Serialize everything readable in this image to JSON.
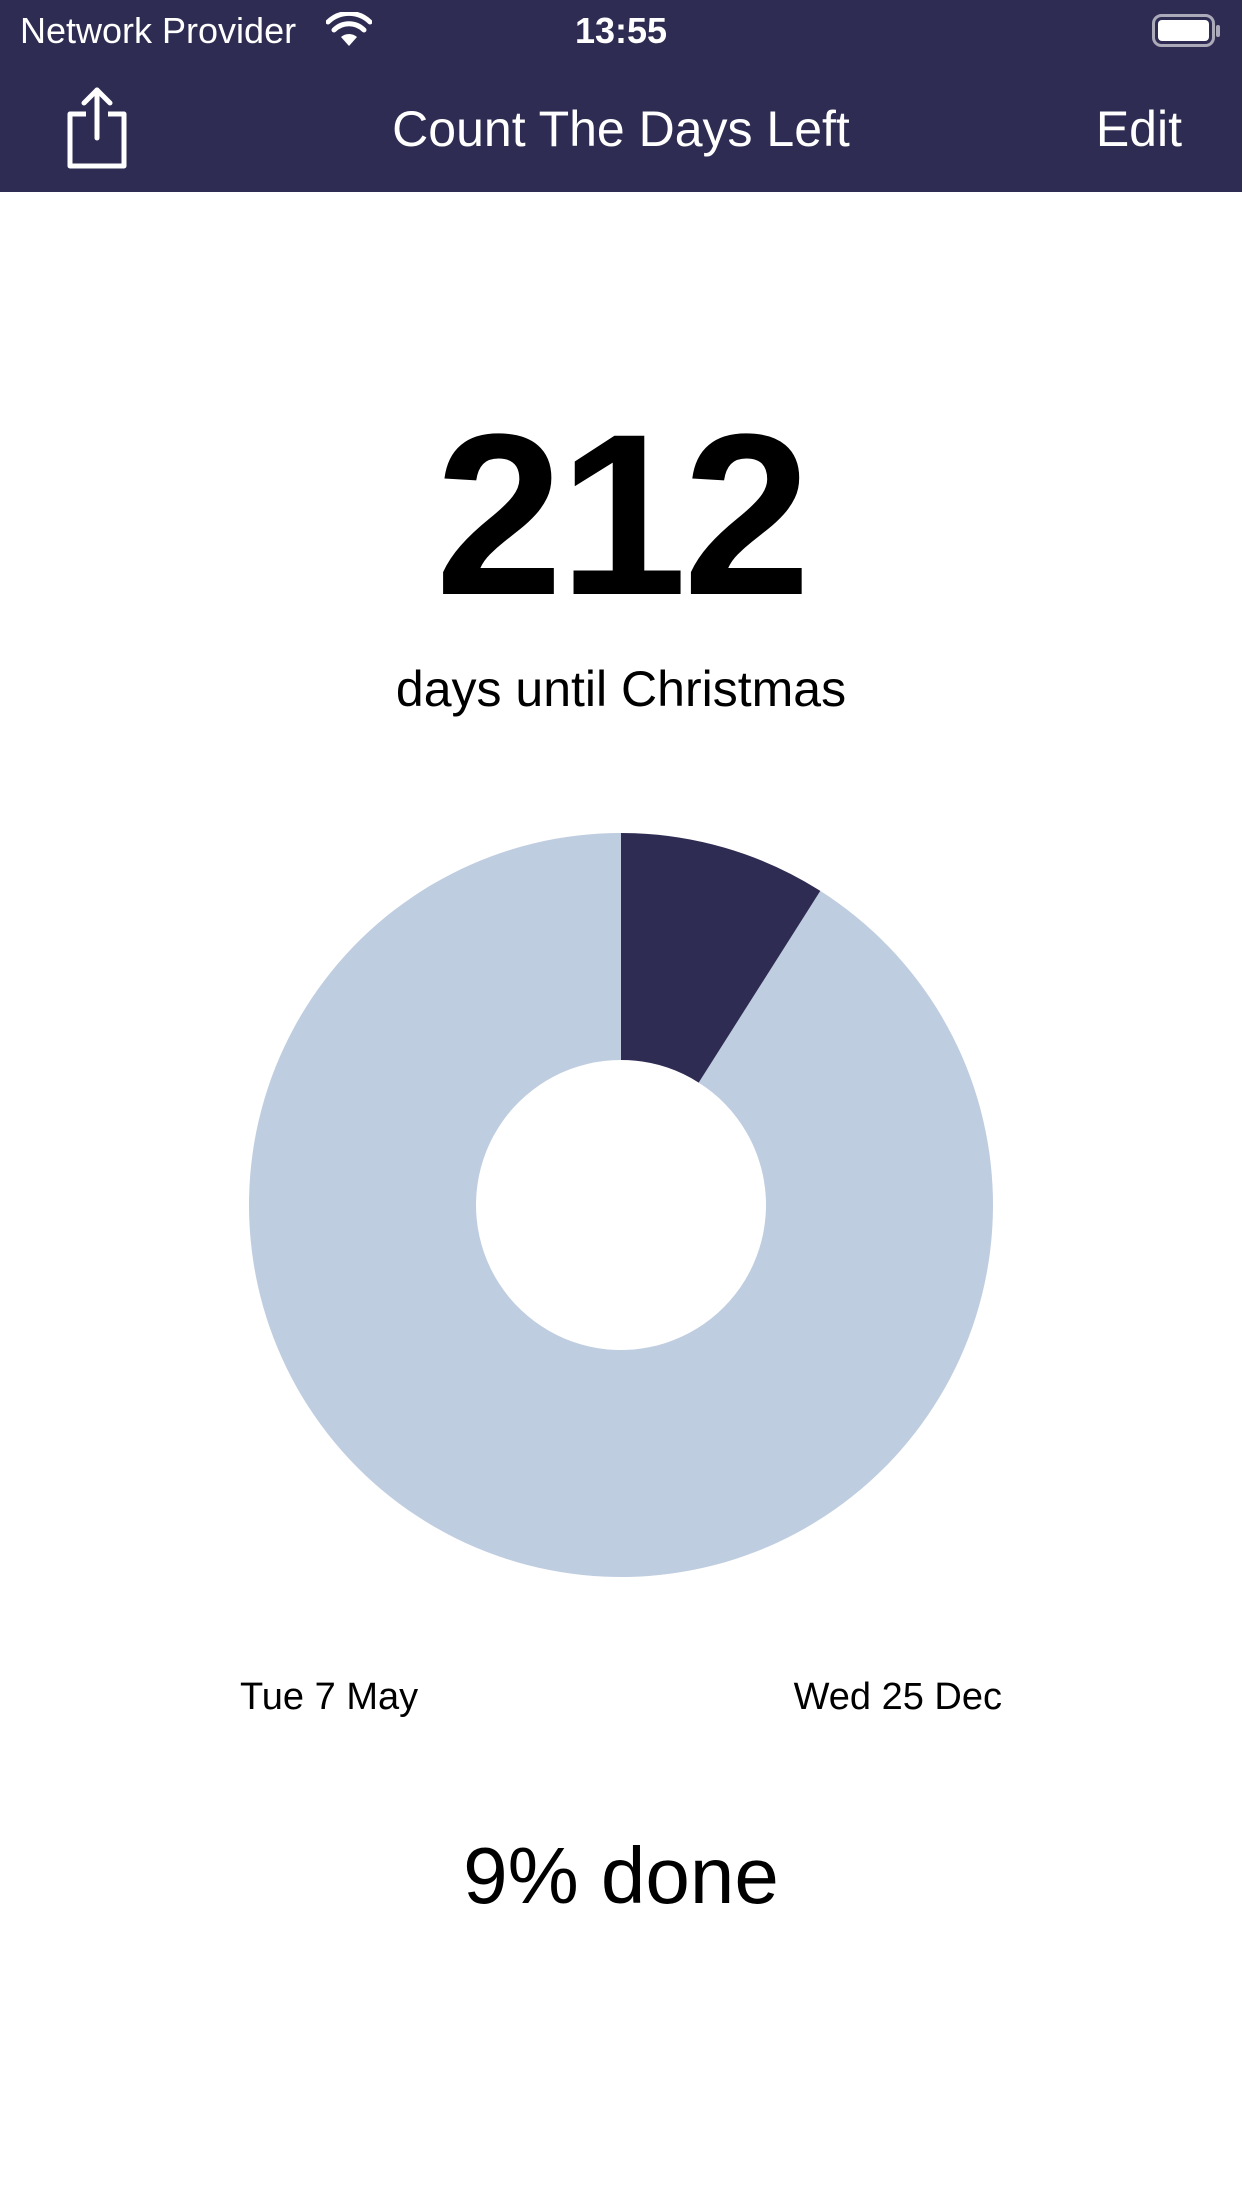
{
  "status_bar": {
    "carrier": "Network Provider",
    "time": "13:55",
    "wifi_icon": "wifi-icon",
    "battery_icon": "battery-full-icon"
  },
  "nav": {
    "title": "Count The Days Left",
    "edit_label": "Edit",
    "share_icon": "share-icon"
  },
  "countdown": {
    "days": "212",
    "label": "days until Christmas"
  },
  "progress": {
    "start_date": "Tue 7 May",
    "end_date": "Wed 25 Dec",
    "done_label": "9% done",
    "fraction_done": 0.09
  },
  "colors": {
    "bar": "#2e2c52",
    "done": "#2e2c52",
    "remaining": "#bfcde0",
    "background": "#ffffff"
  }
}
